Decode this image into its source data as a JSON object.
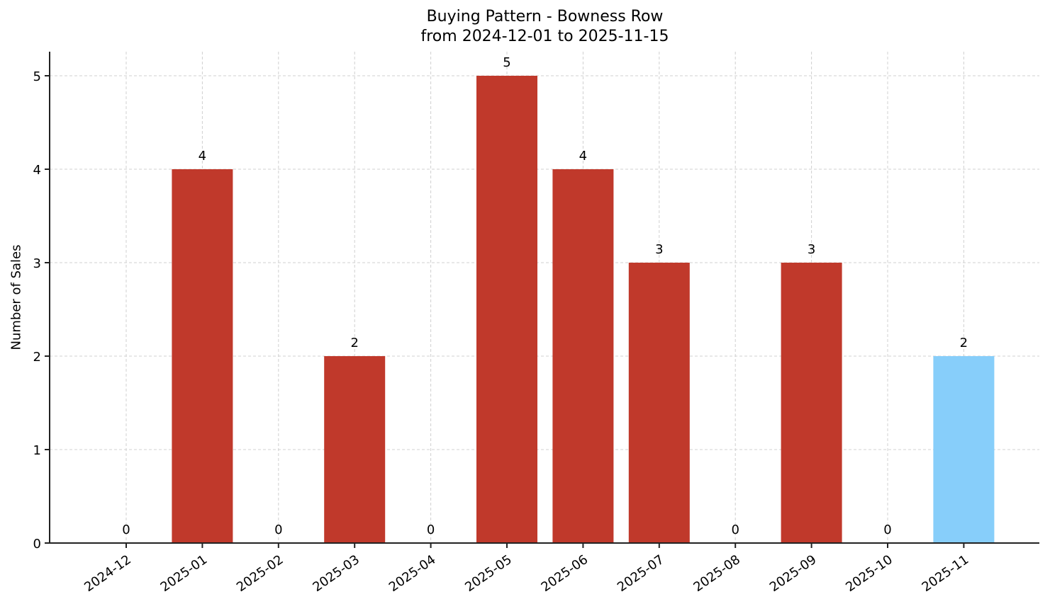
{
  "chart_data": {
    "type": "bar",
    "title": "Buying Pattern - Bowness Row",
    "subtitle": "from 2024-12-01 to 2025-11-15",
    "xlabel": "",
    "ylabel": "Number of Sales",
    "categories": [
      "2024-12",
      "2025-01",
      "2025-02",
      "2025-03",
      "2025-04",
      "2025-05",
      "2025-06",
      "2025-07",
      "2025-08",
      "2025-09",
      "2025-10",
      "2025-11"
    ],
    "values": [
      0,
      4,
      0,
      2,
      0,
      5,
      4,
      3,
      0,
      3,
      0,
      2
    ],
    "bar_colors": [
      "#c0392b",
      "#c0392b",
      "#c0392b",
      "#c0392b",
      "#c0392b",
      "#c0392b",
      "#c0392b",
      "#c0392b",
      "#c0392b",
      "#c0392b",
      "#c0392b",
      "#87cefa"
    ],
    "yticks": [
      0,
      1,
      2,
      3,
      4,
      5
    ],
    "ylim": [
      0,
      5.25
    ],
    "grid": true,
    "legend": null,
    "data_labels": true
  }
}
